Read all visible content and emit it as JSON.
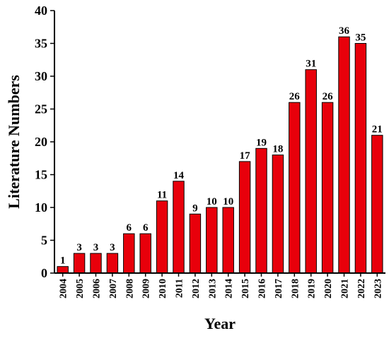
{
  "chart_data": {
    "type": "bar",
    "title": "",
    "xlabel": "Year",
    "ylabel": "Literature Numbers",
    "categories": [
      "2004",
      "2005",
      "2006",
      "2007",
      "2008",
      "2009",
      "2010",
      "2011",
      "2012",
      "2013",
      "2014",
      "2015",
      "2016",
      "2017",
      "2018",
      "2019",
      "2020",
      "2021",
      "2022",
      "2023"
    ],
    "values": [
      1,
      3,
      3,
      3,
      6,
      6,
      11,
      14,
      9,
      10,
      10,
      17,
      19,
      18,
      26,
      31,
      26,
      36,
      35,
      21
    ],
    "ylim": [
      0,
      40
    ],
    "yticks": [
      0,
      5,
      10,
      15,
      20,
      25,
      30,
      35,
      40
    ],
    "grid": false,
    "data_labels": true,
    "colors": {
      "bar_fill": "#e8000b",
      "bar_stroke": "#000000",
      "axis": "#000000"
    }
  }
}
